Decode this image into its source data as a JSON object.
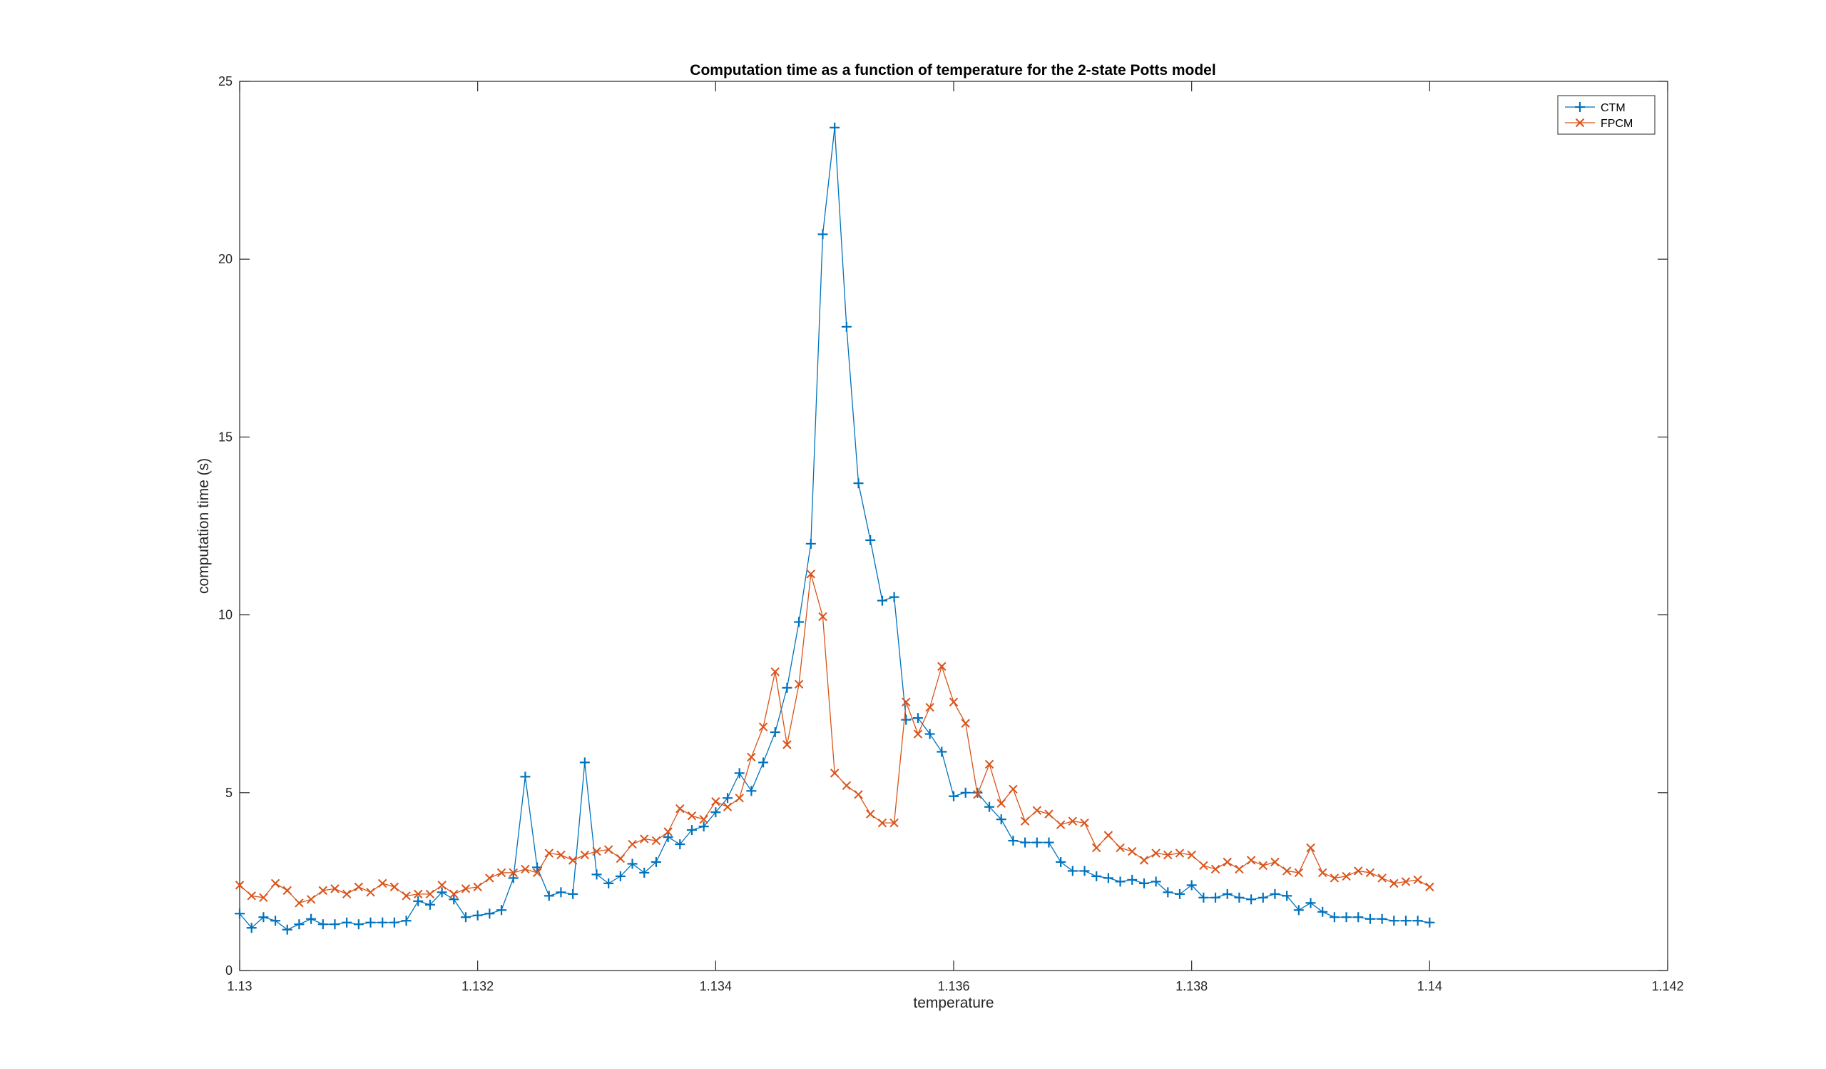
{
  "chart_data": {
    "type": "line",
    "title": "Computation time as a function of temperature for the 2-state Potts model",
    "xlabel": "temperature",
    "ylabel": "computation time (s)",
    "xlim": [
      1.13,
      1.142
    ],
    "ylim": [
      0,
      25
    ],
    "x_ticks": [
      "1.13",
      "1.132",
      "1.134",
      "1.136",
      "1.138",
      "1.14",
      "1.142"
    ],
    "y_ticks": [
      "0",
      "5",
      "10",
      "15",
      "20",
      "25"
    ],
    "grid": false,
    "legend_position": "top-right",
    "x": [
      1.13,
      1.1301,
      1.1302,
      1.1303,
      1.1304,
      1.1305,
      1.1306,
      1.1307,
      1.1308,
      1.1309,
      1.131,
      1.1311,
      1.1312,
      1.1313,
      1.1314,
      1.1315,
      1.1316,
      1.1317,
      1.1318,
      1.1319,
      1.132,
      1.1321,
      1.1322,
      1.1323,
      1.1324,
      1.1325,
      1.1326,
      1.1327,
      1.1328,
      1.1329,
      1.133,
      1.1331,
      1.1332,
      1.1333,
      1.1334,
      1.1335,
      1.1336,
      1.1337,
      1.1338,
      1.1339,
      1.134,
      1.1341,
      1.1342,
      1.1343,
      1.1344,
      1.1345,
      1.1346,
      1.1347,
      1.1348,
      1.1349,
      1.135,
      1.1351,
      1.1352,
      1.1353,
      1.1354,
      1.1355,
      1.1356,
      1.1357,
      1.1358,
      1.1359,
      1.136,
      1.1361,
      1.1362,
      1.1363,
      1.1364,
      1.1365,
      1.1366,
      1.1367,
      1.1368,
      1.1369,
      1.137,
      1.1371,
      1.1372,
      1.1373,
      1.1374,
      1.1375,
      1.1376,
      1.1377,
      1.1378,
      1.1379,
      1.138,
      1.1381,
      1.1382,
      1.1383,
      1.1384,
      1.1385,
      1.1386,
      1.1387,
      1.1388,
      1.1389,
      1.139,
      1.1391,
      1.1392,
      1.1393,
      1.1394,
      1.1395,
      1.1396,
      1.1397,
      1.1398,
      1.1399,
      1.14
    ],
    "series": [
      {
        "name": "CTM",
        "color": "#0072BD",
        "marker": "plus",
        "values": [
          1.6,
          1.2,
          1.5,
          1.4,
          1.15,
          1.3,
          1.45,
          1.3,
          1.3,
          1.35,
          1.3,
          1.35,
          1.35,
          1.35,
          1.4,
          1.95,
          1.85,
          2.2,
          2.0,
          1.5,
          1.55,
          1.6,
          1.7,
          2.6,
          5.45,
          2.9,
          2.1,
          2.2,
          2.15,
          5.85,
          2.7,
          2.45,
          2.65,
          3.0,
          2.75,
          3.05,
          3.75,
          3.55,
          3.95,
          4.05,
          4.45,
          4.85,
          5.55,
          5.05,
          5.85,
          6.7,
          7.95,
          9.8,
          12.0,
          20.7,
          23.7,
          18.1,
          13.7,
          12.1,
          10.4,
          10.5,
          7.05,
          7.1,
          6.65,
          6.15,
          4.9,
          5.0,
          5.0,
          4.6,
          4.25,
          3.65,
          3.6,
          3.6,
          3.6,
          3.05,
          2.8,
          2.8,
          2.65,
          2.6,
          2.5,
          2.55,
          2.45,
          2.5,
          2.2,
          2.15,
          2.4,
          2.05,
          2.05,
          2.15,
          2.05,
          2.0,
          2.05,
          2.15,
          2.1,
          1.7,
          1.9,
          1.65,
          1.5,
          1.5,
          1.5,
          1.45,
          1.45,
          1.4,
          1.4,
          1.4,
          1.35
        ]
      },
      {
        "name": "FPCM",
        "color": "#D95319",
        "marker": "x",
        "values": [
          2.4,
          2.1,
          2.05,
          2.45,
          2.25,
          1.9,
          2.0,
          2.25,
          2.3,
          2.15,
          2.35,
          2.2,
          2.45,
          2.35,
          2.1,
          2.15,
          2.15,
          2.4,
          2.15,
          2.3,
          2.35,
          2.6,
          2.75,
          2.75,
          2.85,
          2.75,
          3.3,
          3.25,
          3.1,
          3.25,
          3.35,
          3.4,
          3.15,
          3.55,
          3.7,
          3.65,
          3.9,
          4.55,
          4.35,
          4.25,
          4.75,
          4.6,
          4.85,
          6.0,
          6.85,
          8.4,
          6.35,
          8.05,
          11.15,
          9.95,
          5.55,
          5.2,
          4.95,
          4.4,
          4.15,
          4.15,
          7.55,
          6.65,
          7.4,
          8.55,
          7.55,
          6.95,
          4.95,
          5.8,
          4.7,
          5.1,
          4.2,
          4.5,
          4.4,
          4.1,
          4.2,
          4.15,
          3.45,
          3.8,
          3.45,
          3.35,
          3.1,
          3.3,
          3.25,
          3.3,
          3.25,
          2.95,
          2.85,
          3.05,
          2.85,
          3.1,
          2.95,
          3.05,
          2.8,
          2.75,
          3.45,
          2.75,
          2.6,
          2.65,
          2.8,
          2.75,
          2.6,
          2.45,
          2.5,
          2.55,
          2.35
        ]
      }
    ]
  }
}
